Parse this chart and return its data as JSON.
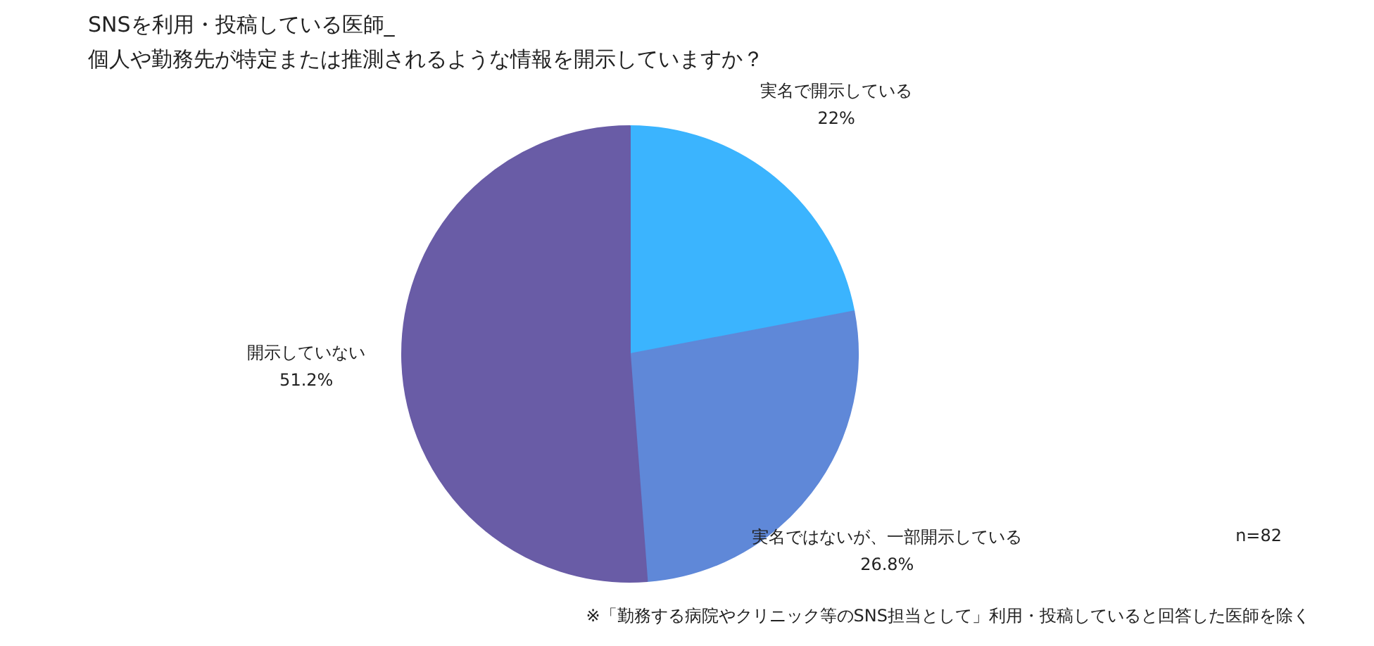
{
  "chart_data": {
    "type": "pie",
    "title": "SNSを利用・投稿している医師_\n個人や勤務先が特定または推測されるような情報を開示していますか？",
    "categories": [
      "実名で開示している",
      "実名ではないが、一部開示している",
      "開示していない"
    ],
    "values": [
      22,
      26.8,
      51.2
    ],
    "colors": [
      "#3bb4fe",
      "#5f88d8",
      "#695ca6"
    ],
    "value_labels": [
      "22%",
      "26.8%",
      "51.2%"
    ],
    "annotations": [
      "n=82",
      "※「勤務する病院やクリニック等のSNS担当として」利用・投稿していると回答した医師を除く"
    ]
  }
}
